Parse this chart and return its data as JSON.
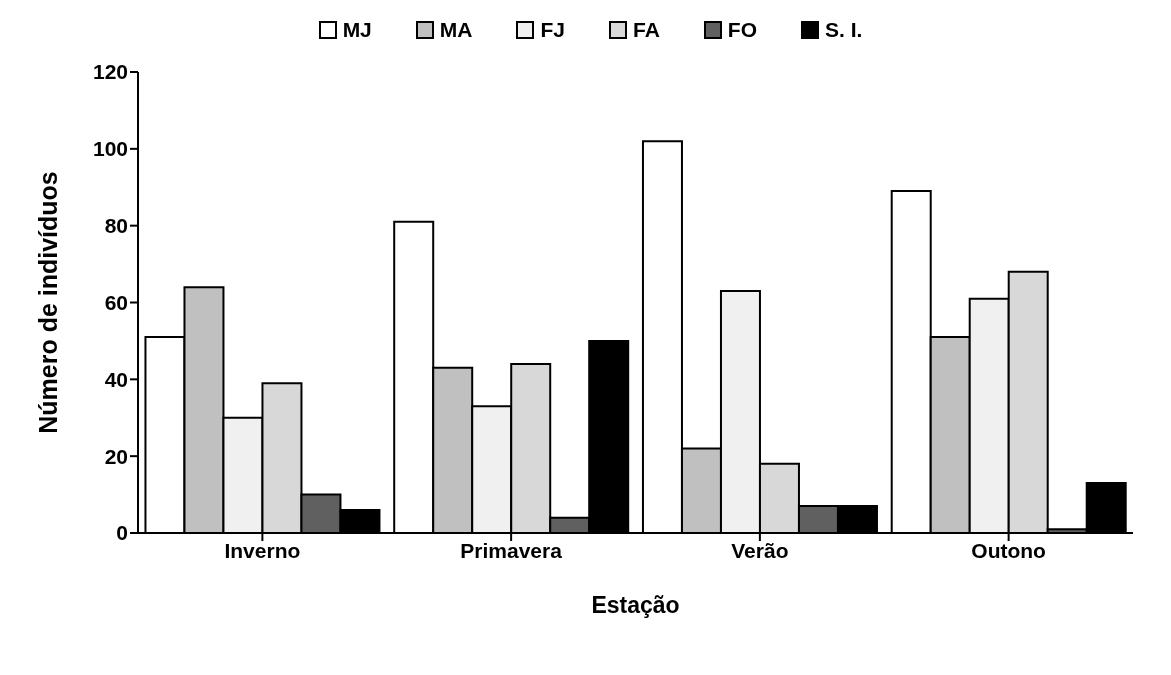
{
  "chart_data": {
    "type": "bar",
    "xlabel": "Estação",
    "ylabel": "Número de indivíduos",
    "categories": [
      "Inverno",
      "Primavera",
      "Verão",
      "Outono"
    ],
    "series": [
      {
        "name": "MJ",
        "color": "#ffffff",
        "values": [
          51,
          81,
          102,
          89
        ]
      },
      {
        "name": "MA",
        "color": "#c0c0c0",
        "values": [
          64,
          43,
          22,
          51
        ]
      },
      {
        "name": "FJ",
        "color": "#f0f0f0",
        "values": [
          30,
          33,
          63,
          61
        ]
      },
      {
        "name": "FA",
        "color": "#d8d8d8",
        "values": [
          39,
          44,
          18,
          68
        ]
      },
      {
        "name": "FO",
        "color": "#606060",
        "values": [
          10,
          4,
          7,
          1
        ]
      },
      {
        "name": "S. I.",
        "color": "#000000",
        "values": [
          6,
          50,
          7,
          13
        ]
      }
    ],
    "ylim": [
      0,
      120
    ],
    "yticks": [
      0,
      20,
      40,
      60,
      80,
      100,
      120
    ],
    "grid": false,
    "legend": "top"
  }
}
